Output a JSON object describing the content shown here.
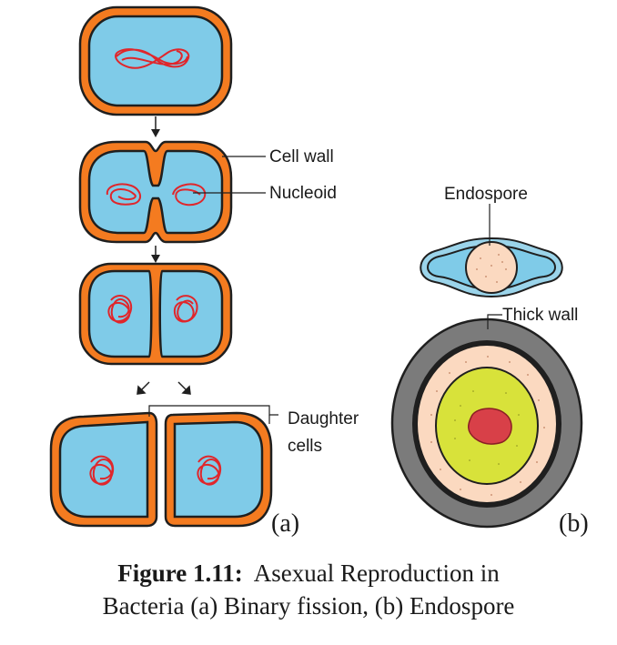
{
  "labels": {
    "cell_wall": "Cell wall",
    "nucleoid": "Nucleoid",
    "daughter_1": "Daughter",
    "daughter_2": "cells",
    "endospore": "Endospore",
    "thick_wall": "Thick wall",
    "panel_a": "(a)",
    "panel_b": "(b)"
  },
  "caption": {
    "label": "Figure 1.11:",
    "line1": "Asexual Reproduction in",
    "line2": "Bacteria (a) Binary fission, (b) Endospore"
  },
  "colors": {
    "cytoplasm": "#7fcbe8",
    "wall": "#f47b20",
    "outline": "#1f1f1f",
    "dna": "#e0262b",
    "spore_fill": "#fbd9c0",
    "core": "#d8e23a",
    "core_center": "#d84048",
    "thick_wall": "#7b7b7b"
  }
}
